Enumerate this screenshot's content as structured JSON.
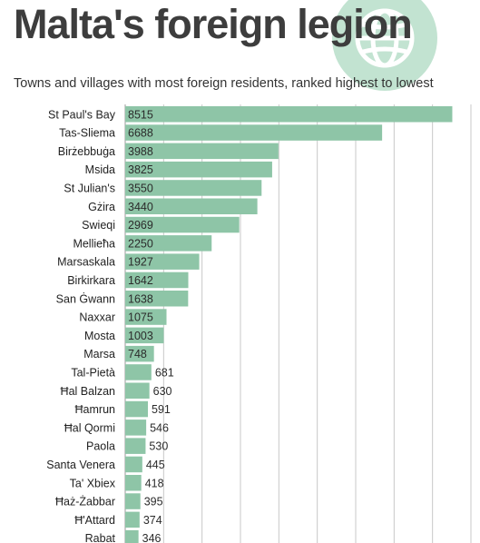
{
  "header": {
    "title": "Malta's foreign legion",
    "subtitle": "Towns and villages with most foreign residents, ranked highest to lowest",
    "logo_icon": "globe-icon"
  },
  "colors": {
    "bar": "#8ec5a7",
    "bar_text": "#2b2b2b",
    "label_text": "#222222",
    "grid": "#c8c8c8",
    "logo": "#c2e3d1"
  },
  "chart_data": {
    "type": "bar",
    "orientation": "horizontal",
    "categories": [
      "St Paul's Bay",
      "Tas-Sliema",
      "Birżebbuġa",
      "Msida",
      "St Julian's",
      "Gżira",
      "Swieqi",
      "Mellieħa",
      "Marsaskala",
      "Birkirkara",
      "San Ġwann",
      "Naxxar",
      "Mosta",
      "Marsa",
      "Tal-Pietà",
      "Ħal Balzan",
      "Ħamrun",
      "Ħal Qormi",
      "Paola",
      "Santa Venera",
      "Ta' Xbiex",
      "Ħaż-Żabbar",
      "Ħ'Attard",
      "Rabat"
    ],
    "values": [
      8515,
      6688,
      3988,
      3825,
      3550,
      3440,
      2969,
      2250,
      1927,
      1642,
      1638,
      1075,
      1003,
      748,
      681,
      630,
      591,
      546,
      530,
      445,
      418,
      395,
      374,
      346
    ],
    "xlim": [
      0,
      9000
    ],
    "grid": true,
    "data_labels": true
  }
}
